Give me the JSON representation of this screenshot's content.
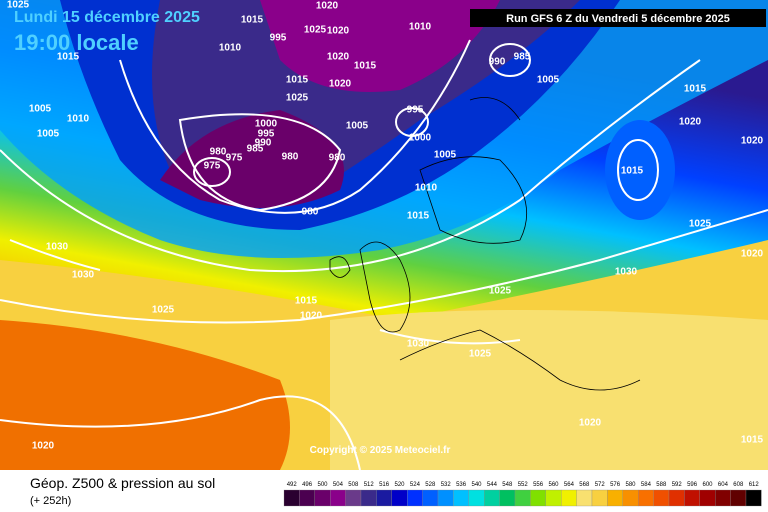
{
  "header": {
    "date": "Lundi 15 décembre 2025",
    "time": "19:00 locale",
    "run": "Run GFS 6 Z du Vendredi 5 décembre 2025"
  },
  "copyright": "Copyright © 2025 Meteociel.fr",
  "legend": {
    "title": "Géop. Z500 & pression au sol",
    "lead_time": "(+ 252h)",
    "scale": [
      {
        "value": 492,
        "color": "#2a0030"
      },
      {
        "value": 496,
        "color": "#4b0050"
      },
      {
        "value": 500,
        "color": "#6a006a"
      },
      {
        "value": 504,
        "color": "#8a008a"
      },
      {
        "value": 508,
        "color": "#6a3a8a"
      },
      {
        "value": 512,
        "color": "#3a2a8a"
      },
      {
        "value": 516,
        "color": "#1a1aa0"
      },
      {
        "value": 520,
        "color": "#0000c8"
      },
      {
        "value": 524,
        "color": "#0030ff"
      },
      {
        "value": 528,
        "color": "#0060ff"
      },
      {
        "value": 532,
        "color": "#0090ff"
      },
      {
        "value": 536,
        "color": "#00c0ff"
      },
      {
        "value": 540,
        "color": "#00e0e0"
      },
      {
        "value": 544,
        "color": "#00d0a0"
      },
      {
        "value": 548,
        "color": "#00c060"
      },
      {
        "value": 552,
        "color": "#40d040"
      },
      {
        "value": 556,
        "color": "#80e000"
      },
      {
        "value": 560,
        "color": "#c0f000"
      },
      {
        "value": 564,
        "color": "#f0f000"
      },
      {
        "value": 568,
        "color": "#f8e070"
      },
      {
        "value": 572,
        "color": "#f8d040"
      },
      {
        "value": 576,
        "color": "#f8b000"
      },
      {
        "value": 580,
        "color": "#f89000"
      },
      {
        "value": 584,
        "color": "#f87000"
      },
      {
        "value": 588,
        "color": "#f05000"
      },
      {
        "value": 592,
        "color": "#e03000"
      },
      {
        "value": 596,
        "color": "#c01000"
      },
      {
        "value": 600,
        "color": "#a00000"
      },
      {
        "value": 604,
        "color": "#800000"
      },
      {
        "value": 608,
        "color": "#600000"
      },
      {
        "value": 612,
        "color": "#000000"
      }
    ]
  },
  "isobar_labels": [
    1025,
    1015,
    1020,
    995,
    1025,
    1020,
    1010,
    1015,
    1020,
    1015,
    1010,
    990,
    985,
    1005,
    1015,
    1025,
    1020,
    1015,
    1005,
    1010,
    995,
    1020,
    1005,
    1000,
    995,
    1005,
    1000,
    990,
    985,
    1005,
    980,
    975,
    980,
    980,
    975,
    1015,
    1010,
    980,
    1015,
    1025,
    1030,
    1020,
    1030,
    1025,
    1030,
    1015,
    1025,
    1020,
    1030,
    1025,
    1020,
    1020,
    1020,
    1015
  ]
}
